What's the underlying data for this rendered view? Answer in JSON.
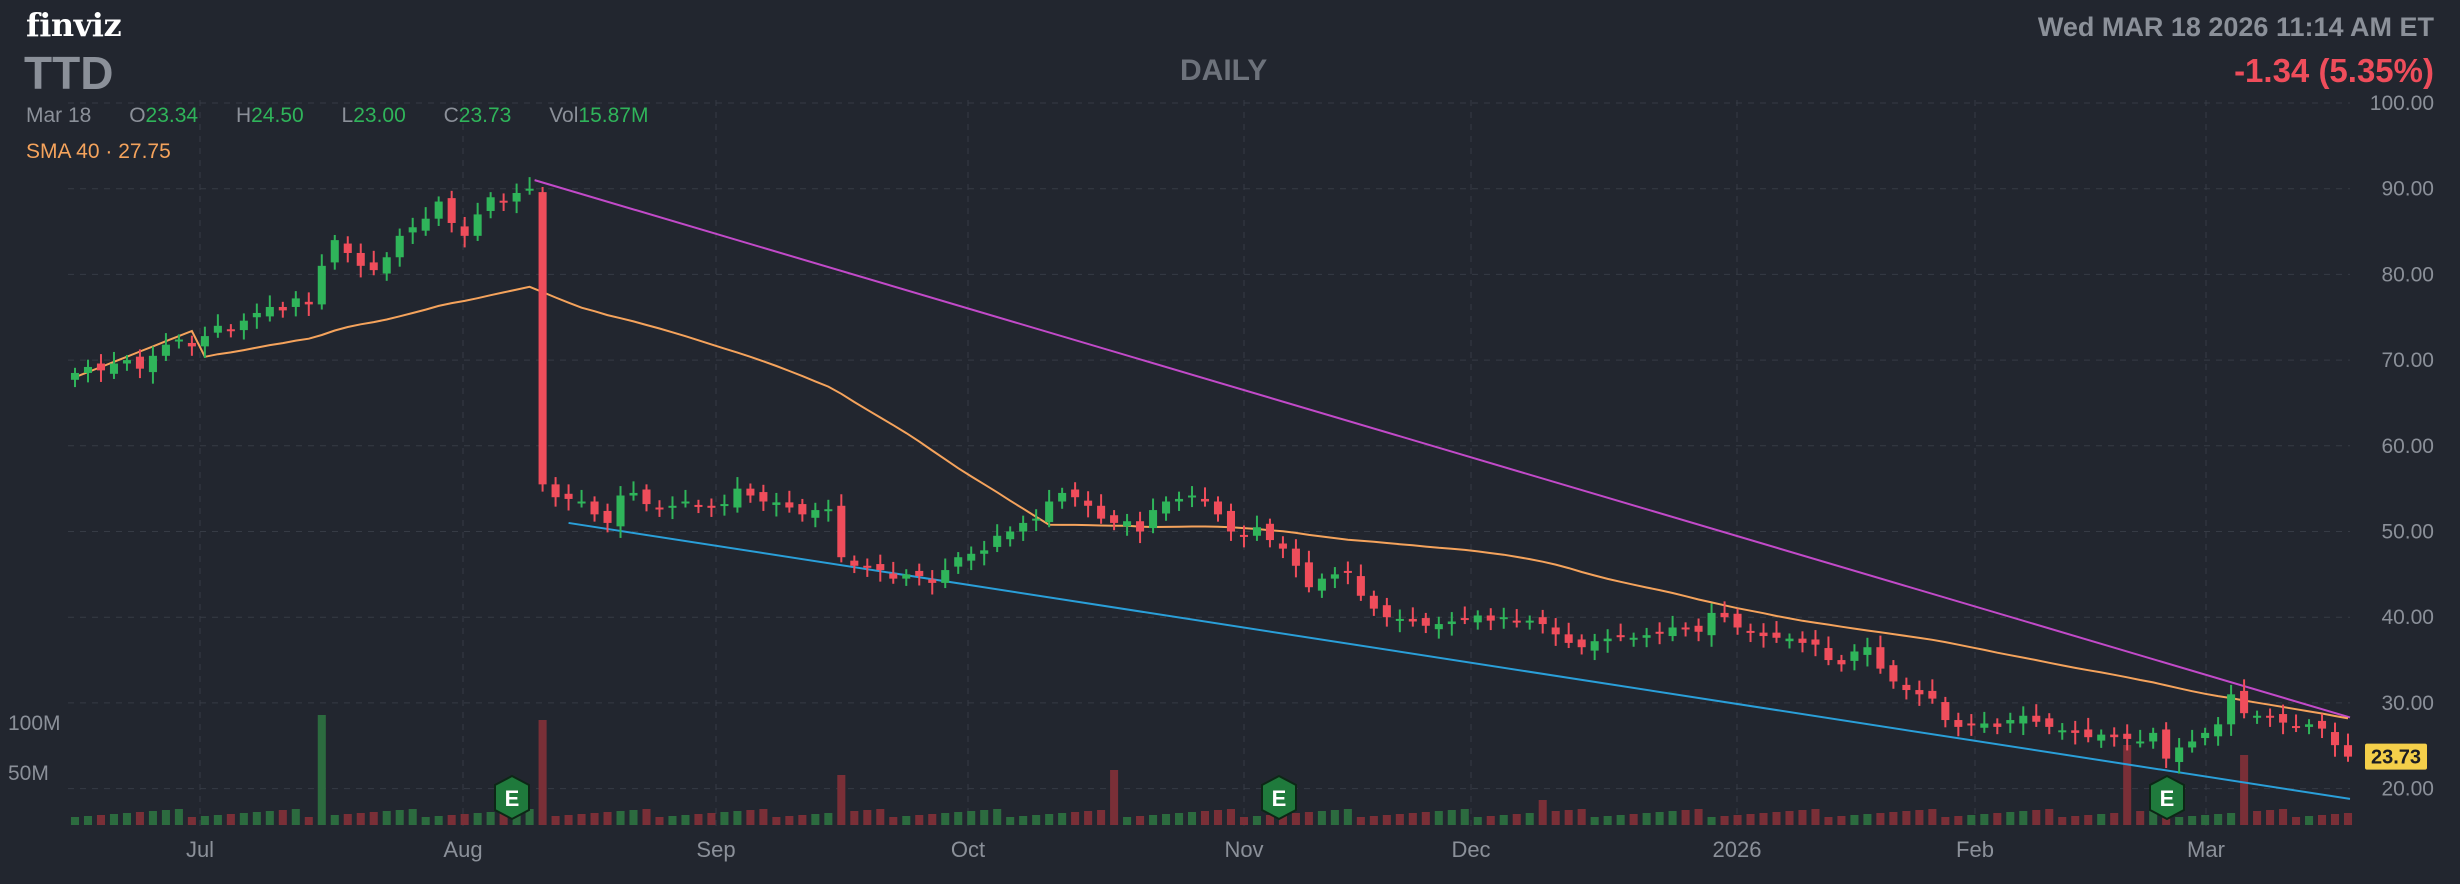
{
  "header": {
    "logo": "finviz",
    "ticker": "TTD",
    "timeframe": "DAILY",
    "datetime": "Wed MAR 18 2026 11:14 AM ET",
    "change": "-1.34 (5.35%)"
  },
  "ohlc": {
    "date": "Mar 18",
    "open_label": "O",
    "open": "23.34",
    "high_label": "H",
    "high": "24.50",
    "low_label": "L",
    "low": "23.00",
    "close_label": "C",
    "close": "23.73",
    "vol_label": "Vol",
    "vol": "15.87M"
  },
  "sma": {
    "label": "SMA 40",
    "sep": "·",
    "value": "27.75"
  },
  "colors": {
    "background": "#22262f",
    "up": "#2fb45a",
    "down": "#ef4d5b",
    "sma": "#f5a35c",
    "upper_trend": "#c24ac9",
    "lower_trend": "#2a9fd9",
    "grid": "#363b45",
    "last_price": "#f4cf4a"
  },
  "chart_data": {
    "type": "candlestick",
    "ylim": [
      17,
      100
    ],
    "y_ticks": [
      "100.00",
      "90.00",
      "80.00",
      "70.00",
      "60.00",
      "50.00",
      "40.00",
      "30.00",
      "20.00"
    ],
    "x_ticks": [
      "Jul",
      "Aug",
      "Sep",
      "Oct",
      "Nov",
      "Dec",
      "2026",
      "Feb",
      "Mar"
    ],
    "volume_ticks": [
      "100M",
      "50M"
    ],
    "last_price": "23.73",
    "earnings_marker": "E",
    "earnings_markers_at": [
      "Aug",
      "Nov",
      "Feb"
    ],
    "closes": [
      68.5,
      69.2,
      68.8,
      69.6,
      70.0,
      69.0,
      70.5,
      71.8,
      72.4,
      71.6,
      72.8,
      74.0,
      73.5,
      74.6,
      75.5,
      76.2,
      75.8,
      77.2,
      76.5,
      81.0,
      84.0,
      82.5,
      81.0,
      80.5,
      82.0,
      84.5,
      85.5,
      86.5,
      88.5,
      86.0,
      84.5,
      87.0,
      89.0,
      88.5,
      89.5,
      90.0,
      55.5,
      54.0,
      53.8,
      53.5,
      52.0,
      51.0,
      54.2,
      54.5,
      53.2,
      52.8,
      53.0,
      53.5,
      53.0,
      52.8,
      53.2,
      55.0,
      54.2,
      53.5,
      53.4,
      52.8,
      52.0,
      52.5,
      52.6,
      47.0,
      46.0,
      45.8,
      45.5,
      44.5,
      45.0,
      44.8,
      44.0,
      45.5,
      47.0,
      47.4,
      47.8,
      49.5,
      50.0,
      51.0,
      51.5,
      53.5,
      54.5,
      54.0,
      53.0,
      51.5,
      51.0,
      51.2,
      50.0,
      52.5,
      53.5,
      53.8,
      54.2,
      53.5,
      52.0,
      50.0,
      49.5,
      50.5,
      49.0,
      48.0,
      46.0,
      43.5,
      44.5,
      45.0,
      45.2,
      42.5,
      41.0,
      40.0,
      39.8,
      39.5,
      39.0,
      39.2,
      39.5,
      39.8,
      40.2,
      39.6,
      40.0,
      39.4,
      39.6,
      39.2,
      38.0,
      37.0,
      36.5,
      37.2,
      37.5,
      37.8,
      37.6,
      37.9,
      38.2,
      38.8,
      38.6,
      38.3,
      40.5,
      40.0,
      38.8,
      38.2,
      37.8,
      37.6,
      37.5,
      37.0,
      36.8,
      35.0,
      34.5,
      36.0,
      36.5,
      34.0,
      32.5,
      31.5,
      31.0,
      30.5,
      28.0,
      27.2,
      27.5,
      27.6,
      27.2,
      28.0,
      28.5,
      27.8,
      27.2,
      26.8,
      26.5,
      26.0,
      26.3,
      26.0,
      25.8,
      25.5,
      26.5,
      23.5,
      24.8,
      25.5,
      26.5,
      27.5,
      31.0,
      28.8,
      28.5,
      28.3,
      27.7,
      27.2,
      27.5,
      27.0,
      25.07,
      23.73
    ]
  }
}
